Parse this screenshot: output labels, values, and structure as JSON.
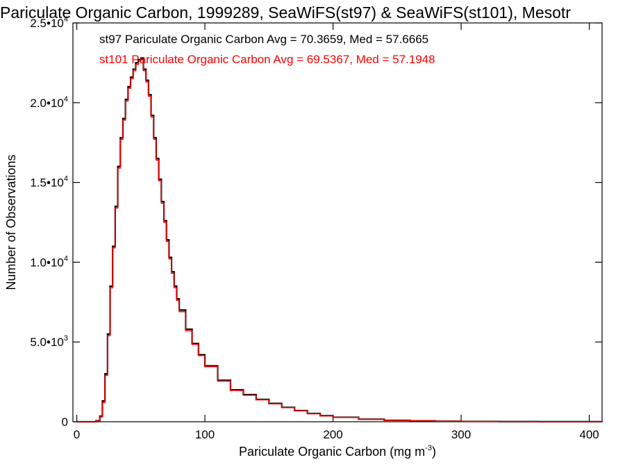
{
  "chart_data": {
    "type": "line",
    "title": "Pariculate Organic Carbon, 1999289, SeaWiFS(st97) & SeaWiFS(st101), Mesotr",
    "xlabel": "Pariculate Organic Carbon (mg m",
    "xlabel_sup": "-3",
    "xlabel_end": ")",
    "ylabel": "Number of Observations",
    "xlim": [
      -3,
      410
    ],
    "ylim": [
      0,
      25000
    ],
    "x_ticks": [
      {
        "value": 0,
        "label": "0"
      },
      {
        "value": 100,
        "label": "100"
      },
      {
        "value": 200,
        "label": "200"
      },
      {
        "value": 300,
        "label": "300"
      },
      {
        "value": 400,
        "label": "400"
      }
    ],
    "y_ticks": [
      {
        "value": 0,
        "label": "0",
        "exp": ""
      },
      {
        "value": 5000,
        "label": "5.0•10",
        "exp": "3"
      },
      {
        "value": 10000,
        "label": "1.0•10",
        "exp": "4"
      },
      {
        "value": 15000,
        "label": "1.5•10",
        "exp": "4"
      },
      {
        "value": 20000,
        "label": "2.0•10",
        "exp": "4"
      },
      {
        "value": 25000,
        "label": "2.5•10",
        "exp": "4"
      }
    ],
    "x": [
      0,
      10,
      15,
      18,
      20,
      22,
      24,
      26,
      28,
      30,
      32,
      34,
      36,
      38,
      40,
      42,
      44,
      46,
      48,
      50,
      52,
      54,
      56,
      58,
      60,
      62,
      64,
      66,
      68,
      70,
      72,
      74,
      76,
      78,
      80,
      85,
      90,
      95,
      100,
      110,
      120,
      130,
      140,
      150,
      160,
      170,
      180,
      190,
      200,
      220,
      240,
      260,
      280,
      300,
      330,
      360,
      410
    ],
    "series": [
      {
        "name": "st97",
        "color": "#000000",
        "values": [
          0,
          0,
          60,
          350,
          1300,
          3000,
          5500,
          8500,
          11000,
          13500,
          16000,
          17800,
          19000,
          20200,
          21000,
          21600,
          22100,
          22500,
          22700,
          22800,
          22100,
          21400,
          20500,
          19200,
          17800,
          16500,
          15200,
          13800,
          12600,
          11400,
          10300,
          9400,
          8500,
          7700,
          7000,
          5800,
          4900,
          4200,
          3500,
          2600,
          2000,
          1700,
          1400,
          1150,
          900,
          700,
          520,
          380,
          280,
          160,
          90,
          55,
          35,
          20,
          12,
          5,
          0
        ]
      },
      {
        "name": "st101",
        "color": "#ff0000",
        "values": [
          0,
          0,
          50,
          300,
          1200,
          2900,
          5400,
          8400,
          10900,
          13400,
          15900,
          17700,
          18900,
          20100,
          20900,
          21500,
          22000,
          22400,
          22600,
          22700,
          22000,
          21300,
          20400,
          19100,
          17700,
          16400,
          15100,
          13700,
          12500,
          11300,
          10200,
          9300,
          8400,
          7600,
          6900,
          5700,
          4850,
          4150,
          3450,
          2550,
          1960,
          1660,
          1370,
          1120,
          880,
          680,
          500,
          370,
          270,
          155,
          85,
          52,
          33,
          18,
          11,
          5,
          0
        ]
      }
    ],
    "annotations": [
      {
        "text": "st97 Pariculate Organic Carbon Avg = 70.3659, Med = 57.6665",
        "color": "#000000"
      },
      {
        "text": "st101 Pariculate Organic Carbon Avg = 69.5367, Med = 57.1948",
        "color": "#ff0000"
      }
    ],
    "grid": false,
    "legend": "none"
  }
}
